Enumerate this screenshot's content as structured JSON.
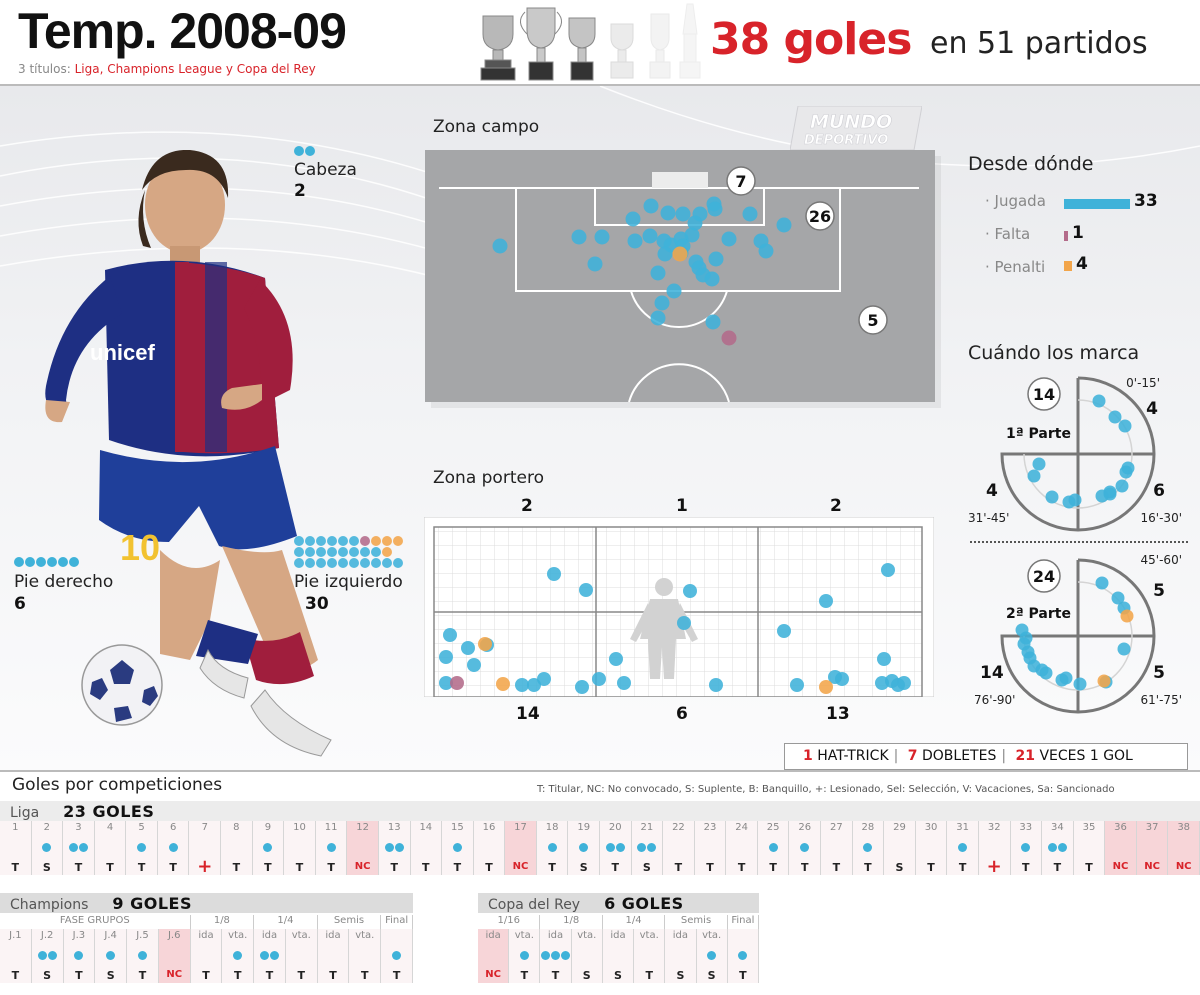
{
  "header": {
    "title": "Temp. 2008-09",
    "titles_prefix": "3 títulos:",
    "titles_list": "Liga, Champions League y Copa del Rey",
    "goals": "38 goles",
    "matches": "en 51 partidos"
  },
  "brand": {
    "line1": "MUNDO",
    "line2": "DEPORTIVO"
  },
  "player": {
    "shirt_sponsor": "unicef",
    "shirt_number": "10",
    "head": {
      "label": "Cabeza",
      "value": "2",
      "dots": 2
    },
    "right_foot": {
      "label": "Pie derecho",
      "value": "6",
      "dots": 6
    },
    "left_foot": {
      "label": "Pie izquierdo",
      "value": "30"
    }
  },
  "field": {
    "title": "Zona campo",
    "zone_counts": {
      "six_yard": "7",
      "box": "26",
      "outside": "5"
    }
  },
  "origin": {
    "title": "Desde dónde",
    "items": [
      {
        "label": "· Jugada",
        "value": 33,
        "color": "#3fb2d9"
      },
      {
        "label": "· Falta",
        "value": 1,
        "color": "#b36b8a"
      },
      {
        "label": "· Penalti",
        "value": 4,
        "color": "#f2a54a"
      }
    ]
  },
  "timing": {
    "title": "Cuándo los marca",
    "first_half": {
      "label": "1ª Parte",
      "total": "14",
      "q1": {
        "value": "4",
        "range": "0'-15'"
      },
      "q2": {
        "value": "6",
        "range": "16'-30'"
      },
      "q3": {
        "value": "4",
        "range": "31'-45'"
      }
    },
    "second_half": {
      "label": "2ª Parte",
      "total": "24",
      "q1": {
        "value": "5",
        "range": "45'-60'"
      },
      "q2": {
        "value": "5",
        "range": "61'-75'"
      },
      "q3": {
        "value": "14",
        "range": "76'-90'"
      }
    }
  },
  "goal_zone": {
    "title": "Zona portero",
    "top": [
      "2",
      "1",
      "2"
    ],
    "bottom": [
      "14",
      "6",
      "13"
    ]
  },
  "events": {
    "hat_n": "1",
    "hat_label": "HAT-TRICK",
    "dob_n": "7",
    "dob_label": "DOBLETES",
    "one_n": "21",
    "one_label": "VECES 1 GOL"
  },
  "competitions": {
    "title": "Goles por competiciones",
    "legend": "T: Titular, NC: No convocado, S: Suplente, B: Banquillo, +: Lesionado, Sel: Selección, V: Vacaciones, Sa: Sancionado",
    "liga": {
      "name": "Liga",
      "goals": "23 GOLES",
      "matches": [
        {
          "n": "1",
          "g": 0,
          "s": "T"
        },
        {
          "n": "2",
          "g": 1,
          "s": "S"
        },
        {
          "n": "3",
          "g": 2,
          "s": "T"
        },
        {
          "n": "4",
          "g": 0,
          "s": "T"
        },
        {
          "n": "5",
          "g": 1,
          "s": "T"
        },
        {
          "n": "6",
          "g": 1,
          "s": "T"
        },
        {
          "n": "7",
          "g": 0,
          "s": "+"
        },
        {
          "n": "8",
          "g": 0,
          "s": "T"
        },
        {
          "n": "9",
          "g": 1,
          "s": "T"
        },
        {
          "n": "10",
          "g": 0,
          "s": "T"
        },
        {
          "n": "11",
          "g": 1,
          "s": "T"
        },
        {
          "n": "12",
          "g": 0,
          "s": "NC"
        },
        {
          "n": "13",
          "g": 2,
          "s": "T"
        },
        {
          "n": "14",
          "g": 0,
          "s": "T"
        },
        {
          "n": "15",
          "g": 1,
          "s": "T"
        },
        {
          "n": "16",
          "g": 0,
          "s": "T"
        },
        {
          "n": "17",
          "g": 0,
          "s": "NC"
        },
        {
          "n": "18",
          "g": 1,
          "s": "T"
        },
        {
          "n": "19",
          "g": 1,
          "s": "S"
        },
        {
          "n": "20",
          "g": 2,
          "s": "T"
        },
        {
          "n": "21",
          "g": 2,
          "s": "S"
        },
        {
          "n": "22",
          "g": 0,
          "s": "T"
        },
        {
          "n": "23",
          "g": 0,
          "s": "T"
        },
        {
          "n": "24",
          "g": 0,
          "s": "T"
        },
        {
          "n": "25",
          "g": 1,
          "s": "T"
        },
        {
          "n": "26",
          "g": 1,
          "s": "T"
        },
        {
          "n": "27",
          "g": 0,
          "s": "T"
        },
        {
          "n": "28",
          "g": 1,
          "s": "T"
        },
        {
          "n": "29",
          "g": 0,
          "s": "S"
        },
        {
          "n": "30",
          "g": 0,
          "s": "T"
        },
        {
          "n": "31",
          "g": 1,
          "s": "T"
        },
        {
          "n": "32",
          "g": 0,
          "s": "+"
        },
        {
          "n": "33",
          "g": 1,
          "s": "T"
        },
        {
          "n": "34",
          "g": 2,
          "s": "T"
        },
        {
          "n": "35",
          "g": 0,
          "s": "T"
        },
        {
          "n": "36",
          "g": 0,
          "s": "NC"
        },
        {
          "n": "37",
          "g": 0,
          "s": "NC"
        },
        {
          "n": "38",
          "g": 0,
          "s": "NC"
        }
      ]
    },
    "champions": {
      "name": "Champions",
      "goals": "9 GOLES",
      "phases": [
        {
          "label": "FASE GRUPOS",
          "span": 6
        },
        {
          "label": "1/8",
          "span": 2
        },
        {
          "label": "1/4",
          "span": 2
        },
        {
          "label": "Semis",
          "span": 2
        },
        {
          "label": "Final",
          "span": 1
        }
      ],
      "matches": [
        {
          "n": "J.1",
          "g": 0,
          "s": "T"
        },
        {
          "n": "J.2",
          "g": 2,
          "s": "S"
        },
        {
          "n": "J.3",
          "g": 1,
          "s": "T"
        },
        {
          "n": "J.4",
          "g": 1,
          "s": "S"
        },
        {
          "n": "J.5",
          "g": 1,
          "s": "T"
        },
        {
          "n": "J.6",
          "g": 0,
          "s": "NC"
        },
        {
          "n": "ida",
          "g": 0,
          "s": "T"
        },
        {
          "n": "vta.",
          "g": 1,
          "s": "T"
        },
        {
          "n": "ida",
          "g": 2,
          "s": "T"
        },
        {
          "n": "vta.",
          "g": 0,
          "s": "T"
        },
        {
          "n": "ida",
          "g": 0,
          "s": "T"
        },
        {
          "n": "vta.",
          "g": 0,
          "s": "T"
        },
        {
          "n": "",
          "g": 1,
          "s": "T"
        }
      ]
    },
    "copa": {
      "name": "Copa del Rey",
      "goals": "6  GOLES",
      "phases": [
        {
          "label": "1/16",
          "span": 2
        },
        {
          "label": "1/8",
          "span": 2
        },
        {
          "label": "1/4",
          "span": 2
        },
        {
          "label": "Semis",
          "span": 2
        },
        {
          "label": "Final",
          "span": 1
        }
      ],
      "matches": [
        {
          "n": "ida",
          "g": 0,
          "s": "NC"
        },
        {
          "n": "vta.",
          "g": 1,
          "s": "T"
        },
        {
          "n": "ida",
          "g": 3,
          "s": "T"
        },
        {
          "n": "vta.",
          "g": 0,
          "s": "S"
        },
        {
          "n": "ida",
          "g": 0,
          "s": "S"
        },
        {
          "n": "vta.",
          "g": 0,
          "s": "T"
        },
        {
          "n": "ida",
          "g": 0,
          "s": "S"
        },
        {
          "n": "vta.",
          "g": 1,
          "s": "S"
        },
        {
          "n": "",
          "g": 1,
          "s": "T"
        }
      ]
    }
  }
}
